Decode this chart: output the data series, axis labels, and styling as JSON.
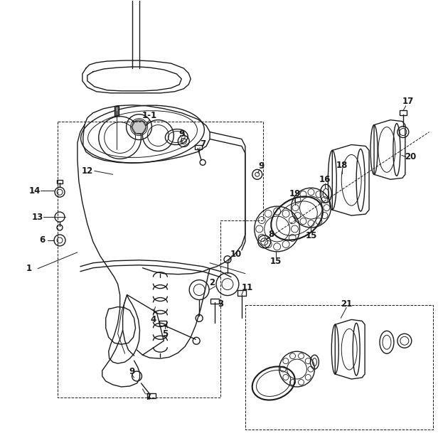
{
  "bg": "#ffffff",
  "lc": "#1a1a1a",
  "fw": 6.23,
  "fh": 6.3,
  "dpi": 100
}
